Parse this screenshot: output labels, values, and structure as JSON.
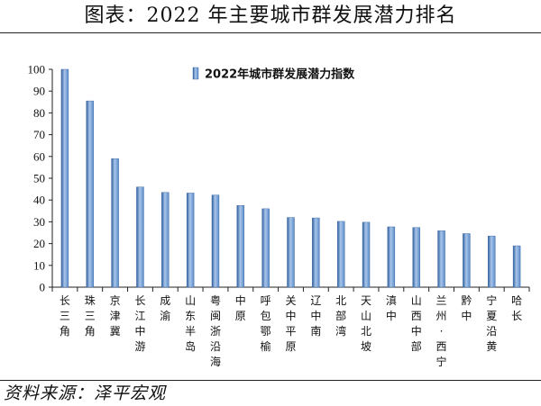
{
  "header": {
    "title": "图表：2022 年主要城市群发展潜力排名"
  },
  "footer": {
    "source": "资料来源：泽平宏观"
  },
  "colors": {
    "bar": "#5b8bc9",
    "bar_dark": "#2f5f9e",
    "bar_light": "#a9c6ea",
    "axis": "#222222"
  },
  "chart_data": {
    "type": "bar",
    "legend_position": "top-right",
    "grid": false,
    "ylim": [
      0,
      100
    ],
    "yticks": [
      0,
      10,
      20,
      30,
      40,
      50,
      60,
      70,
      80,
      90,
      100
    ],
    "categories": [
      "长三角",
      "珠三角",
      "京津冀",
      "长江中游",
      "成渝",
      "山东半岛",
      "粤闽浙沿海",
      "中原",
      "呼包鄂榆",
      "关中平原",
      "辽中南",
      "北部湾",
      "天山北坡",
      "滇中",
      "山西中部",
      "兰州-西宁",
      "黔中",
      "宁夏沿黄",
      "哈长"
    ],
    "series": [
      {
        "name": "2022年城市群发展潜力指数",
        "values": [
          100,
          85.5,
          59,
          46,
          43.5,
          43.2,
          42.3,
          37.5,
          36,
          32,
          31.8,
          30.2,
          29.8,
          27.7,
          27.4,
          25.9,
          24.6,
          23.5,
          19
        ]
      }
    ]
  }
}
